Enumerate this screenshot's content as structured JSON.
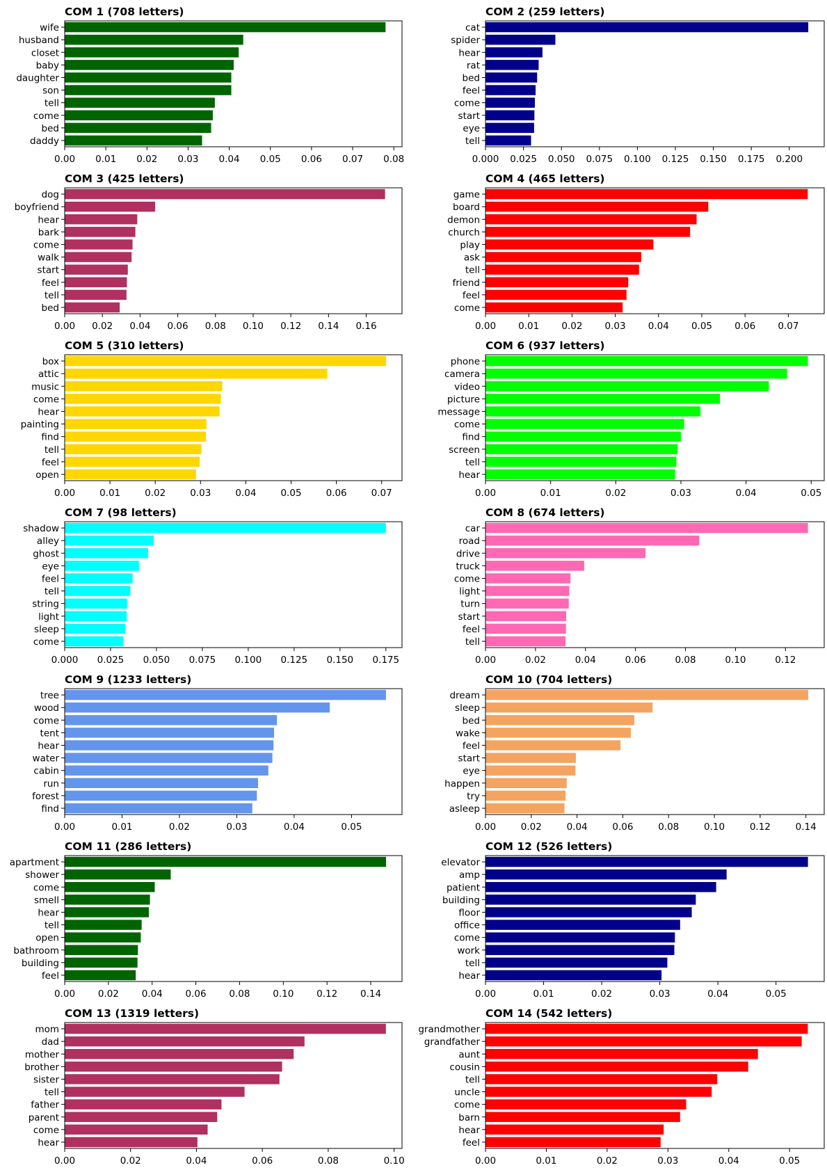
{
  "chart_data": [
    {
      "type": "bar",
      "orientation": "horizontal",
      "title": "COM 1 (708 letters)",
      "color": "#006400",
      "categories": [
        "wife",
        "husband",
        "closet",
        "baby",
        "daughter",
        "son",
        "tell",
        "come",
        "bed",
        "daddy"
      ],
      "values": [
        0.078,
        0.0434,
        0.0423,
        0.0411,
        0.0405,
        0.0405,
        0.0365,
        0.036,
        0.0356,
        0.0334
      ],
      "xlim": [
        0,
        0.082
      ],
      "xticks": [
        0,
        0.01,
        0.02,
        0.03,
        0.04,
        0.05,
        0.06,
        0.07,
        0.08
      ],
      "xtick_labels": [
        "0.00",
        "0.01",
        "0.02",
        "0.03",
        "0.04",
        "0.05",
        "0.06",
        "0.07",
        "0.08"
      ]
    },
    {
      "type": "bar",
      "orientation": "horizontal",
      "title": "COM 2 (259 letters)",
      "color": "#00008B",
      "categories": [
        "cat",
        "spider",
        "hear",
        "rat",
        "bed",
        "feel",
        "come",
        "start",
        "eye",
        "tell"
      ],
      "values": [
        0.2125,
        0.046,
        0.0375,
        0.035,
        0.034,
        0.033,
        0.0325,
        0.0322,
        0.032,
        0.03
      ],
      "xlim": [
        0,
        0.223
      ],
      "xticks": [
        0,
        0.025,
        0.05,
        0.075,
        0.1,
        0.125,
        0.15,
        0.175,
        0.2
      ],
      "xtick_labels": [
        "0.000",
        "0.025",
        "0.050",
        "0.075",
        "0.100",
        "0.125",
        "0.150",
        "0.175",
        "0.200"
      ]
    },
    {
      "type": "bar",
      "orientation": "horizontal",
      "title": "COM 3 (425 letters)",
      "color": "#B03060",
      "categories": [
        "dog",
        "boyfriend",
        "hear",
        "bark",
        "come",
        "walk",
        "start",
        "feel",
        "tell",
        "bed"
      ],
      "values": [
        0.17,
        0.048,
        0.0385,
        0.0375,
        0.036,
        0.0355,
        0.0335,
        0.033,
        0.0328,
        0.0292
      ],
      "xlim": [
        0,
        0.179
      ],
      "xticks": [
        0,
        0.02,
        0.04,
        0.06,
        0.08,
        0.1,
        0.12,
        0.14,
        0.16
      ],
      "xtick_labels": [
        "0.00",
        "0.02",
        "0.04",
        "0.06",
        "0.08",
        "0.10",
        "0.12",
        "0.14",
        "0.16"
      ]
    },
    {
      "type": "bar",
      "orientation": "horizontal",
      "title": "COM 4 (465 letters)",
      "color": "#FF0000",
      "categories": [
        "game",
        "board",
        "demon",
        "church",
        "play",
        "ask",
        "tell",
        "friend",
        "feel",
        "come"
      ],
      "values": [
        0.0745,
        0.0515,
        0.0488,
        0.0473,
        0.0388,
        0.036,
        0.0355,
        0.033,
        0.0326,
        0.0317
      ],
      "xlim": [
        0,
        0.0783
      ],
      "xticks": [
        0,
        0.01,
        0.02,
        0.03,
        0.04,
        0.05,
        0.06,
        0.07
      ],
      "xtick_labels": [
        "0.00",
        "0.01",
        "0.02",
        "0.03",
        "0.04",
        "0.05",
        "0.06",
        "0.07"
      ]
    },
    {
      "type": "bar",
      "orientation": "horizontal",
      "title": "COM 5 (310 letters)",
      "color": "#FFD700",
      "categories": [
        "box",
        "attic",
        "music",
        "come",
        "hear",
        "painting",
        "find",
        "tell",
        "feel",
        "open"
      ],
      "values": [
        0.071,
        0.058,
        0.0348,
        0.0345,
        0.0342,
        0.0313,
        0.0312,
        0.0302,
        0.0298,
        0.029
      ],
      "xlim": [
        0,
        0.0745
      ],
      "xticks": [
        0,
        0.01,
        0.02,
        0.03,
        0.04,
        0.05,
        0.06,
        0.07
      ],
      "xtick_labels": [
        "0.00",
        "0.01",
        "0.02",
        "0.03",
        "0.04",
        "0.05",
        "0.06",
        "0.07"
      ]
    },
    {
      "type": "bar",
      "orientation": "horizontal",
      "title": "COM 6 (937 letters)",
      "color": "#00FF00",
      "categories": [
        "phone",
        "camera",
        "video",
        "picture",
        "message",
        "come",
        "find",
        "screen",
        "tell",
        "hear"
      ],
      "values": [
        0.0495,
        0.0463,
        0.0435,
        0.036,
        0.033,
        0.0305,
        0.03,
        0.0295,
        0.0293,
        0.0291
      ],
      "xlim": [
        0,
        0.052
      ],
      "xticks": [
        0,
        0.01,
        0.02,
        0.03,
        0.04,
        0.05
      ],
      "xtick_labels": [
        "0.00",
        "0.01",
        "0.02",
        "0.03",
        "0.04",
        "0.05"
      ]
    },
    {
      "type": "bar",
      "orientation": "horizontal",
      "title": "COM 7 (98 letters)",
      "color": "#00FFFF",
      "categories": [
        "shadow",
        "alley",
        "ghost",
        "eye",
        "feel",
        "tell",
        "string",
        "light",
        "sleep",
        "come"
      ],
      "values": [
        0.175,
        0.0485,
        0.0455,
        0.0405,
        0.037,
        0.0358,
        0.034,
        0.0338,
        0.033,
        0.032
      ],
      "xlim": [
        0,
        0.1838
      ],
      "xticks": [
        0,
        0.025,
        0.05,
        0.075,
        0.1,
        0.125,
        0.15,
        0.175
      ],
      "xtick_labels": [
        "0.000",
        "0.025",
        "0.050",
        "0.075",
        "0.100",
        "0.125",
        "0.150",
        "0.175"
      ]
    },
    {
      "type": "bar",
      "orientation": "horizontal",
      "title": "COM 8 (674 letters)",
      "color": "#FF69B4",
      "categories": [
        "car",
        "road",
        "drive",
        "truck",
        "come",
        "light",
        "turn",
        "start",
        "feel",
        "tell"
      ],
      "values": [
        0.129,
        0.0855,
        0.064,
        0.0395,
        0.034,
        0.0335,
        0.0333,
        0.0323,
        0.0322,
        0.032
      ],
      "xlim": [
        0,
        0.1355
      ],
      "xticks": [
        0,
        0.02,
        0.04,
        0.06,
        0.08,
        0.1,
        0.12
      ],
      "xtick_labels": [
        "0.00",
        "0.02",
        "0.04",
        "0.06",
        "0.08",
        "0.10",
        "0.12"
      ]
    },
    {
      "type": "bar",
      "orientation": "horizontal",
      "title": "COM 9 (1233 letters)",
      "color": "#6495ED",
      "categories": [
        "tree",
        "wood",
        "come",
        "tent",
        "hear",
        "water",
        "cabin",
        "run",
        "forest",
        "find"
      ],
      "values": [
        0.056,
        0.0462,
        0.037,
        0.0365,
        0.0364,
        0.0362,
        0.0355,
        0.0337,
        0.0335,
        0.0327
      ],
      "xlim": [
        0,
        0.0588
      ],
      "xticks": [
        0,
        0.01,
        0.02,
        0.03,
        0.04,
        0.05
      ],
      "xtick_labels": [
        "0.00",
        "0.01",
        "0.02",
        "0.03",
        "0.04",
        "0.05"
      ]
    },
    {
      "type": "bar",
      "orientation": "horizontal",
      "title": "COM 10 (704 letters)",
      "color": "#F4A460",
      "categories": [
        "dream",
        "sleep",
        "bed",
        "wake",
        "feel",
        "start",
        "eye",
        "happen",
        "try",
        "asleep"
      ],
      "values": [
        0.141,
        0.073,
        0.065,
        0.0635,
        0.059,
        0.0395,
        0.0393,
        0.0355,
        0.035,
        0.0345
      ],
      "xlim": [
        0,
        0.148
      ],
      "xticks": [
        0,
        0.02,
        0.04,
        0.06,
        0.08,
        0.1,
        0.12,
        0.14
      ],
      "xtick_labels": [
        "0.00",
        "0.02",
        "0.04",
        "0.06",
        "0.08",
        "0.10",
        "0.12",
        "0.14"
      ]
    },
    {
      "type": "bar",
      "orientation": "horizontal",
      "title": "COM 11 (286 letters)",
      "color": "#006400",
      "categories": [
        "apartment",
        "shower",
        "come",
        "smell",
        "hear",
        "tell",
        "open",
        "bathroom",
        "building",
        "feel"
      ],
      "values": [
        0.147,
        0.0485,
        0.0412,
        0.039,
        0.0385,
        0.0352,
        0.0348,
        0.0335,
        0.0333,
        0.0325
      ],
      "xlim": [
        0,
        0.1543
      ],
      "xticks": [
        0,
        0.02,
        0.04,
        0.06,
        0.08,
        0.1,
        0.12,
        0.14
      ],
      "xtick_labels": [
        "0.00",
        "0.02",
        "0.04",
        "0.06",
        "0.08",
        "0.10",
        "0.12",
        "0.14"
      ]
    },
    {
      "type": "bar",
      "orientation": "horizontal",
      "title": "COM 12 (526 letters)",
      "color": "#00008B",
      "categories": [
        "elevator",
        "amp",
        "patient",
        "building",
        "floor",
        "office",
        "come",
        "work",
        "tell",
        "hear"
      ],
      "values": [
        0.0555,
        0.0415,
        0.0397,
        0.0362,
        0.0355,
        0.0335,
        0.0326,
        0.0325,
        0.0313,
        0.0303
      ],
      "xlim": [
        0,
        0.0583
      ],
      "xticks": [
        0,
        0.01,
        0.02,
        0.03,
        0.04,
        0.05
      ],
      "xtick_labels": [
        "0.00",
        "0.01",
        "0.02",
        "0.03",
        "0.04",
        "0.05"
      ]
    },
    {
      "type": "bar",
      "orientation": "horizontal",
      "title": "COM 13 (1319 letters)",
      "color": "#B03060",
      "categories": [
        "mom",
        "dad",
        "mother",
        "brother",
        "sister",
        "tell",
        "father",
        "parent",
        "come",
        "hear"
      ],
      "values": [
        0.0975,
        0.0728,
        0.0695,
        0.066,
        0.0652,
        0.0546,
        0.0476,
        0.0463,
        0.0434,
        0.0403
      ],
      "xlim": [
        0,
        0.1024
      ],
      "xticks": [
        0,
        0.02,
        0.04,
        0.06,
        0.08,
        0.1
      ],
      "xtick_labels": [
        "0.00",
        "0.02",
        "0.04",
        "0.06",
        "0.08",
        "0.10"
      ]
    },
    {
      "type": "bar",
      "orientation": "horizontal",
      "title": "COM 14 (542 letters)",
      "color": "#FF0000",
      "categories": [
        "grandmother",
        "grandfather",
        "aunt",
        "cousin",
        "tell",
        "uncle",
        "come",
        "barn",
        "hear",
        "feel"
      ],
      "values": [
        0.053,
        0.052,
        0.0448,
        0.0432,
        0.0381,
        0.0372,
        0.033,
        0.032,
        0.0293,
        0.0288
      ],
      "xlim": [
        0,
        0.0557
      ],
      "xticks": [
        0,
        0.01,
        0.02,
        0.03,
        0.04,
        0.05
      ],
      "xtick_labels": [
        "0.00",
        "0.01",
        "0.02",
        "0.03",
        "0.04",
        "0.05"
      ]
    }
  ]
}
